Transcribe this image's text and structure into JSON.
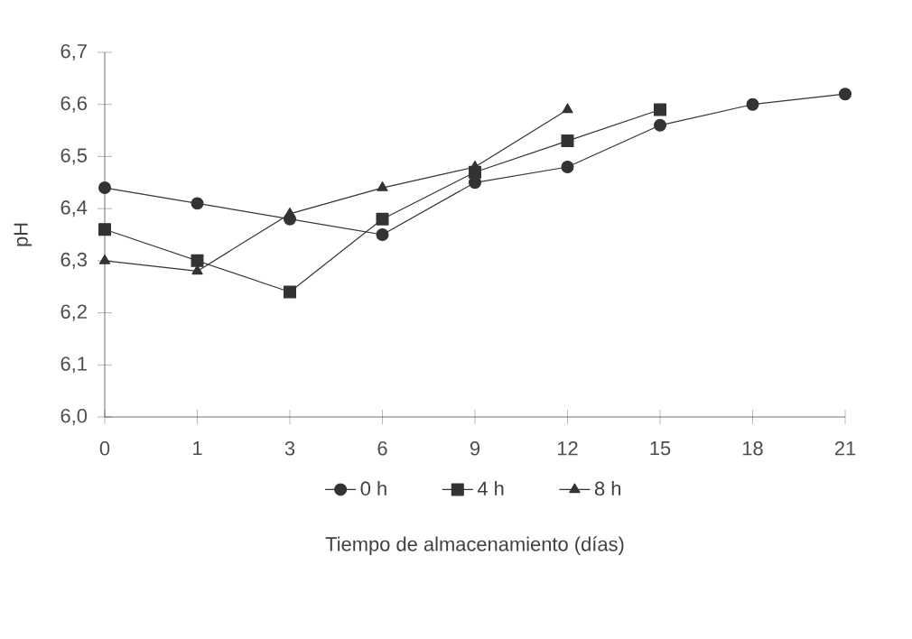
{
  "chart_data": {
    "type": "line",
    "xlabel": "Tiempo de almacenamiento (días)",
    "ylabel": "pH",
    "categories": [
      "0",
      "1",
      "3",
      "6",
      "9",
      "12",
      "15",
      "18",
      "21"
    ],
    "series": [
      {
        "name": "0 h",
        "color": "#333333",
        "marker": "circle",
        "values": [
          6.44,
          6.41,
          6.38,
          6.35,
          6.45,
          6.48,
          6.56,
          6.6,
          6.62
        ]
      },
      {
        "name": "4 h",
        "color": "#333333",
        "marker": "square",
        "values": [
          6.36,
          6.3,
          6.24,
          6.38,
          6.47,
          6.53,
          6.59,
          null,
          null
        ]
      },
      {
        "name": "8 h",
        "color": "#333333",
        "marker": "triangle",
        "values": [
          6.3,
          6.28,
          6.39,
          6.44,
          6.48,
          6.59,
          null,
          null,
          null
        ]
      }
    ],
    "ylim": [
      6.0,
      6.7
    ],
    "yticks": [
      {
        "value": 6.0,
        "label": "6,0"
      },
      {
        "value": 6.1,
        "label": "6,1"
      },
      {
        "value": 6.2,
        "label": "6,2"
      },
      {
        "value": 6.3,
        "label": "6,3"
      },
      {
        "value": 6.4,
        "label": "6,4"
      },
      {
        "value": 6.5,
        "label": "6,5"
      },
      {
        "value": 6.6,
        "label": "6,6"
      },
      {
        "value": 6.7,
        "label": "6,7"
      }
    ],
    "legend": "bottom",
    "line_style": "solid"
  }
}
